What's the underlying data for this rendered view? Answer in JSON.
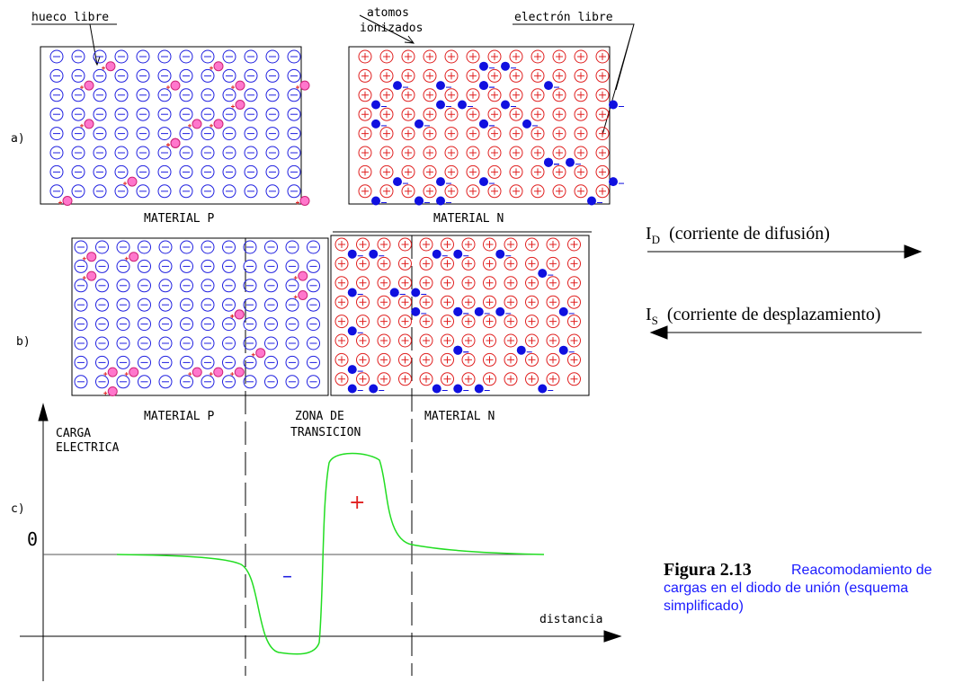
{
  "labels": {
    "hole": "hueco libre",
    "ionized": [
      "atomos",
      "ionizados"
    ],
    "electron": "electrón libre",
    "a": "a)",
    "b": "b)",
    "c": "c)",
    "material_p": "MATERIAL P",
    "material_n": "MATERIAL N",
    "material_p2": "MATERIAL P",
    "zone": [
      "ZONA DE",
      "TRANSICION"
    ],
    "material_n2": "MATERIAL N",
    "charge": [
      "CARGA",
      "ELECTRICA"
    ],
    "zero": "0",
    "plus": "+",
    "minus": "–",
    "distance": "distancia"
  },
  "currents": [
    {
      "symbol": "I",
      "sub": "D",
      "text": "(corriente de difusión)"
    },
    {
      "symbol": "I",
      "sub": "S",
      "text": "(corriente de desplazamiento)"
    }
  ],
  "caption": {
    "number": "Figura 2.13",
    "lines": [
      "Reacomodamiento de",
      "cargas en el diodo de unión (esquema",
      "simplificado)"
    ]
  }
}
